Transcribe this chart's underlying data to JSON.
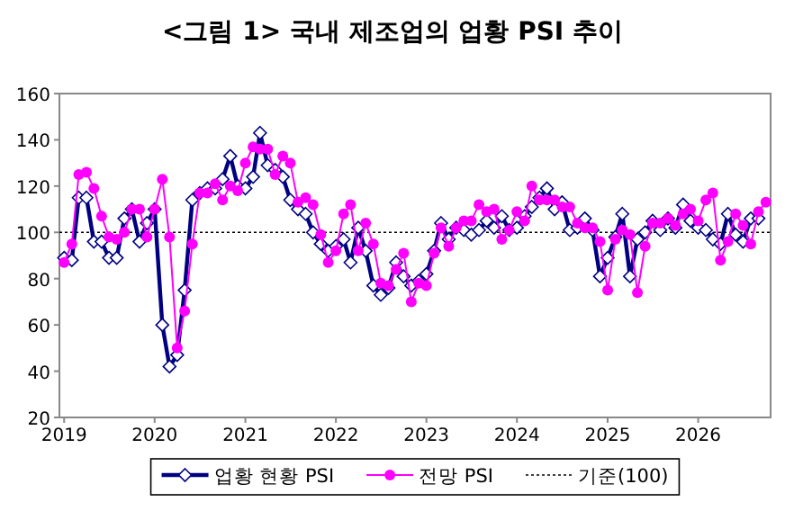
{
  "chart_data": {
    "type": "line",
    "title": "<그림 1> 국내 제조업의 업황 PSI 추이",
    "x": [
      "2019-01",
      "2019-02",
      "2019-03",
      "2019-04",
      "2019-05",
      "2019-06",
      "2019-07",
      "2019-08",
      "2019-09",
      "2019-10",
      "2019-11",
      "2019-12",
      "2020-01",
      "2020-02",
      "2020-03",
      "2020-04",
      "2020-05",
      "2020-06",
      "2020-07",
      "2020-08",
      "2020-09",
      "2020-10",
      "2020-11",
      "2020-12",
      "2021-01",
      "2021-02",
      "2021-03",
      "2021-04",
      "2021-05",
      "2021-06",
      "2021-07",
      "2021-08",
      "2021-09",
      "2021-10",
      "2021-11",
      "2021-12",
      "2022-01",
      "2022-02",
      "2022-03",
      "2022-04",
      "2022-05",
      "2022-06",
      "2022-07",
      "2022-08",
      "2022-09",
      "2022-10",
      "2022-11",
      "2022-12",
      "2023-01",
      "2023-02",
      "2023-03",
      "2023-04",
      "2023-05",
      "2023-06",
      "2023-07",
      "2023-08",
      "2023-09",
      "2023-10",
      "2023-11",
      "2023-12",
      "2024-01",
      "2024-02",
      "2024-03",
      "2024-04",
      "2024-05",
      "2024-06",
      "2024-07",
      "2024-08",
      "2024-09",
      "2024-10",
      "2024-11",
      "2024-12",
      "2025-01",
      "2025-02",
      "2025-03",
      "2025-04",
      "2025-05",
      "2025-06",
      "2025-07",
      "2025-08",
      "2025-09",
      "2025-10",
      "2025-11",
      "2025-12",
      "2026-01",
      "2026-02",
      "2026-03",
      "2026-04",
      "2026-05",
      "2026-06",
      "2026-07",
      "2026-08",
      "2026-09",
      "2026-10"
    ],
    "series": [
      {
        "name": "업황 현황 PSI",
        "color": "#000080",
        "marker": "diamond",
        "values": [
          89,
          88,
          115,
          115,
          96,
          96,
          89,
          89,
          106,
          110,
          96,
          104,
          110,
          60,
          42,
          47,
          75,
          114,
          117,
          119,
          119,
          123,
          133,
          120,
          119,
          124,
          143,
          129,
          127,
          124,
          114,
          110,
          108,
          100,
          95,
          92,
          94,
          97,
          87,
          102,
          92,
          77,
          73,
          76,
          87,
          81,
          77,
          79,
          82,
          92,
          104,
          97,
          102,
          101,
          99,
          101,
          105,
          102,
          107,
          101,
          102,
          107,
          111,
          115,
          119,
          110,
          113,
          101,
          102,
          106,
          101,
          81,
          89,
          98,
          108,
          81,
          97,
          100,
          105,
          101,
          106,
          102,
          112,
          105,
          102,
          101,
          97,
          95,
          108,
          99,
          96,
          106,
          106,
          null
        ]
      },
      {
        "name": "전망 PSI",
        "color": "#ff00ff",
        "marker": "circle",
        "values": [
          87,
          95,
          125,
          126,
          119,
          107,
          98,
          97,
          100,
          110,
          110,
          98,
          110,
          123,
          98,
          50,
          66,
          95,
          117,
          117,
          121,
          114,
          120,
          118,
          130,
          137,
          136,
          136,
          125,
          133,
          130,
          113,
          115,
          112,
          99,
          87,
          92,
          108,
          112,
          92,
          104,
          95,
          78,
          77,
          84,
          91,
          70,
          78,
          77,
          91,
          102,
          94,
          102,
          105,
          105,
          112,
          109,
          110,
          97,
          101,
          109,
          105,
          120,
          114,
          114,
          114,
          111,
          111,
          104,
          102,
          102,
          96,
          75,
          97,
          101,
          99,
          74,
          94,
          104,
          104,
          106,
          103,
          108,
          110,
          105,
          114,
          117,
          88,
          96,
          108,
          103,
          95,
          109,
          113
        ]
      }
    ],
    "ref_lines": [
      {
        "axis": "y",
        "value": 100,
        "label": "기준(100)",
        "color": "#000000",
        "line_style": "dotted"
      }
    ],
    "xlim": [
      "2018-12-13",
      "2026-10-20"
    ],
    "xticks": [
      {
        "value": "2019-01",
        "label": "2019"
      },
      {
        "value": "2020-01",
        "label": "2020"
      },
      {
        "value": "2021-01",
        "label": "2021"
      },
      {
        "value": "2022-01",
        "label": "2022"
      },
      {
        "value": "2023-01",
        "label": "2023"
      },
      {
        "value": "2024-01",
        "label": "2024"
      },
      {
        "value": "2025-01",
        "label": "2025"
      },
      {
        "value": "2026-01",
        "label": "2026"
      }
    ],
    "ylim": [
      20,
      160
    ],
    "yticks": [
      20,
      40,
      60,
      80,
      100,
      120,
      140,
      160
    ],
    "legend": "bottom"
  }
}
